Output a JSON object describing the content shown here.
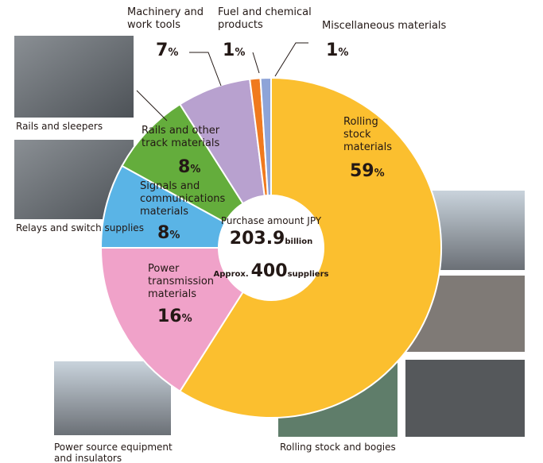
{
  "chart_data": {
    "type": "pie",
    "categories": [
      "Rolling\nstock\nmaterials",
      "Power\ntransmission\nmaterials",
      "Signals and\ncommunications\nmaterials",
      "Rails and other\ntrack materials",
      "Machinery and\nwork tools",
      "Fuel and chemical\nproducts",
      "Miscellaneous materials"
    ],
    "values": [
      59,
      16,
      8,
      8,
      7,
      1,
      1
    ],
    "unit": "%",
    "colors": [
      "#fbbf2f",
      "#f0a2c9",
      "#5ab4e6",
      "#64ad3c",
      "#b8a1cf",
      "#f07a1e",
      "#8ea4d8"
    ],
    "center": {
      "label": "Purchase amount JPY",
      "amount": 203.9,
      "amount_unit": "billion",
      "prefix": "Approx.",
      "suppliers": 400,
      "suppliers_unit": "suppliers"
    }
  },
  "photos": [
    {
      "caption": "Rails and sleepers"
    },
    {
      "caption": "Relays and switch supplies"
    },
    {
      "caption": "Power source equipment\nand insulators"
    },
    {
      "caption": "Rolling stock and bogies"
    }
  ]
}
